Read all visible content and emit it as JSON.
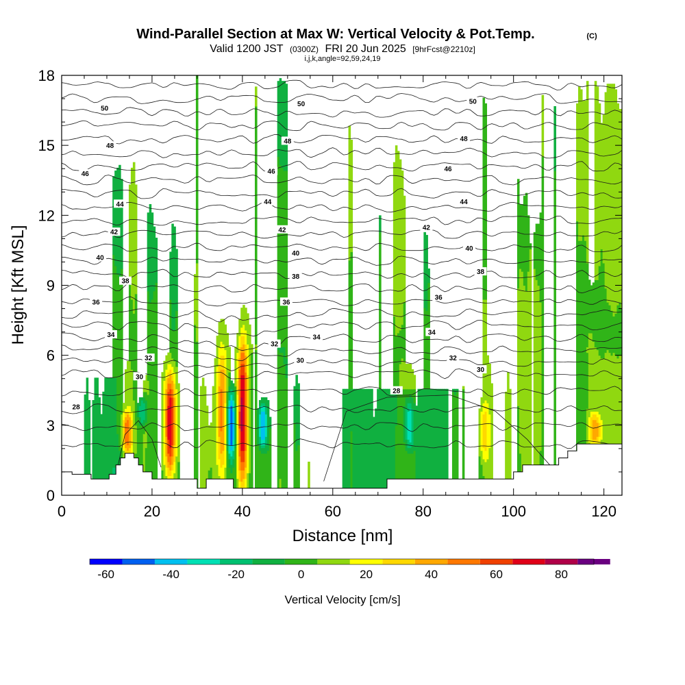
{
  "chart_data": {
    "type": "heatmap",
    "title": "Wind-Parallel Section at Max W: Vertical Velocity & Pot.Temp.",
    "title_mark": "(C)",
    "subtitle_main": "Valid 1200 JST",
    "subtitle_utc": "(0300Z)",
    "subtitle_date": "FRI 20 Jun 2025",
    "subtitle_fcst": "[9hrFcst@2210z]",
    "subtitle2": "i,j,k,angle=92,59,24,19",
    "xlabel": "Distance [nm]",
    "ylabel": "Height [Kft MSL]",
    "xlim": [
      0,
      124
    ],
    "ylim": [
      0,
      18
    ],
    "xticks": [
      0,
      20,
      40,
      60,
      80,
      100,
      120
    ],
    "yticks": [
      0,
      3,
      6,
      9,
      12,
      15,
      18
    ],
    "colorbar": {
      "label": "Vertical Velocity [cm/s]",
      "min": -65,
      "max": 90,
      "tick_values": [
        -60,
        -40,
        -20,
        0,
        20,
        40,
        60,
        80
      ],
      "bins": [
        {
          "lo": -65,
          "hi": -55,
          "color": "#0000ff"
        },
        {
          "lo": -55,
          "hi": -45,
          "color": "#0060f0"
        },
        {
          "lo": -45,
          "hi": -35,
          "color": "#00c0f0"
        },
        {
          "lo": -35,
          "hi": -25,
          "color": "#00e0b4"
        },
        {
          "lo": -25,
          "hi": -15,
          "color": "#00c070"
        },
        {
          "lo": -15,
          "hi": -5,
          "color": "#10b040"
        },
        {
          "lo": -5,
          "hi": 5,
          "color": "#30b418"
        },
        {
          "lo": 5,
          "hi": 15,
          "color": "#90d810"
        },
        {
          "lo": 15,
          "hi": 25,
          "color": "#ffff00"
        },
        {
          "lo": 25,
          "hi": 35,
          "color": "#ffd800"
        },
        {
          "lo": 35,
          "hi": 45,
          "color": "#ffa800"
        },
        {
          "lo": 45,
          "hi": 55,
          "color": "#ff7800"
        },
        {
          "lo": 55,
          "hi": 65,
          "color": "#f04000"
        },
        {
          "lo": 65,
          "hi": 75,
          "color": "#e00018"
        },
        {
          "lo": 75,
          "hi": 85,
          "color": "#b00048"
        },
        {
          "lo": 85,
          "hi": 95,
          "color": "#6a0080"
        }
      ]
    },
    "updraft_cores": [
      {
        "x": 24,
        "z_min": 0.9,
        "z_max": 5.3,
        "max_w": 70
      },
      {
        "x": 35.5,
        "z_min": 0.9,
        "z_max": 6.3,
        "max_w": 45
      },
      {
        "x": 40,
        "z_min": 0.5,
        "z_max": 6.7,
        "max_w": 75
      },
      {
        "x": 14.5,
        "z_min": 1.8,
        "z_max": 3.6,
        "max_w": 45
      },
      {
        "x": 118,
        "z_min": 2.2,
        "z_max": 3.5,
        "max_w": 35
      },
      {
        "x": 93.5,
        "z_min": 1.5,
        "z_max": 4.0,
        "max_w": 25
      }
    ],
    "downdraft_cores": [
      {
        "x": 37.5,
        "z_min": 1.5,
        "z_max": 4.5,
        "min_w": -55
      },
      {
        "x": 44.5,
        "z_min": 2.0,
        "z_max": 4.0,
        "min_w": -50
      },
      {
        "x": 18,
        "z_min": 3.0,
        "z_max": 4.2,
        "min_w": -30
      },
      {
        "x": 77,
        "z_min": 2.0,
        "z_max": 4.0,
        "min_w": -35
      }
    ],
    "theta_contour_labels": [
      {
        "value": "50",
        "x": 9.5,
        "z": 16.6
      },
      {
        "value": "50",
        "x": 53,
        "z": 16.8
      },
      {
        "value": "50",
        "x": 91,
        "z": 16.9
      },
      {
        "value": "48",
        "x": 10.7,
        "z": 15.0
      },
      {
        "value": "48",
        "x": 50,
        "z": 15.2
      },
      {
        "value": "48",
        "x": 89,
        "z": 15.3
      },
      {
        "value": "46",
        "x": 5.2,
        "z": 13.8
      },
      {
        "value": "46",
        "x": 46.4,
        "z": 13.9
      },
      {
        "value": "46",
        "x": 85.5,
        "z": 14.0
      },
      {
        "value": "44",
        "x": 12.9,
        "z": 12.5
      },
      {
        "value": "44",
        "x": 45.6,
        "z": 12.6
      },
      {
        "value": "44",
        "x": 89,
        "z": 12.6
      },
      {
        "value": "42",
        "x": 11.6,
        "z": 11.3
      },
      {
        "value": "42",
        "x": 48.8,
        "z": 11.4
      },
      {
        "value": "42",
        "x": 80.7,
        "z": 11.5
      },
      {
        "value": "40",
        "x": 8.5,
        "z": 10.2
      },
      {
        "value": "40",
        "x": 51.8,
        "z": 10.4
      },
      {
        "value": "40",
        "x": 90.2,
        "z": 10.6
      },
      {
        "value": "38",
        "x": 14.1,
        "z": 9.2
      },
      {
        "value": "38",
        "x": 51.8,
        "z": 9.4
      },
      {
        "value": "38",
        "x": 92.7,
        "z": 9.6
      },
      {
        "value": "36",
        "x": 7.6,
        "z": 8.3
      },
      {
        "value": "36",
        "x": 49.7,
        "z": 8.3
      },
      {
        "value": "36",
        "x": 83.4,
        "z": 8.5
      },
      {
        "value": "34",
        "x": 10.9,
        "z": 6.9
      },
      {
        "value": "34",
        "x": 56.4,
        "z": 6.8
      },
      {
        "value": "34",
        "x": 81.9,
        "z": 7.0
      },
      {
        "value": "32",
        "x": 19.2,
        "z": 5.9
      },
      {
        "value": "32",
        "x": 47.1,
        "z": 6.5
      },
      {
        "value": "32",
        "x": 86.6,
        "z": 5.9
      },
      {
        "value": "30",
        "x": 17.2,
        "z": 5.1
      },
      {
        "value": "30",
        "x": 52.8,
        "z": 5.8
      },
      {
        "value": "30",
        "x": 92.7,
        "z": 5.4
      },
      {
        "value": "28",
        "x": 3.2,
        "z": 3.8
      },
      {
        "value": "28",
        "x": 74.1,
        "z": 4.5
      }
    ],
    "terrain": [
      [
        0,
        1.0
      ],
      [
        2.3,
        1.0
      ],
      [
        2.3,
        0.9
      ],
      [
        6.5,
        0.9
      ],
      [
        6.5,
        0.7
      ],
      [
        10.5,
        0.7
      ],
      [
        10.5,
        0.9
      ],
      [
        12,
        0.9
      ],
      [
        12,
        1.3
      ],
      [
        13,
        1.3
      ],
      [
        13,
        1.6
      ],
      [
        14,
        1.6
      ],
      [
        14,
        1.8
      ],
      [
        16,
        1.8
      ],
      [
        16,
        1.6
      ],
      [
        17,
        1.6
      ],
      [
        17,
        1.3
      ],
      [
        18,
        1.3
      ],
      [
        18,
        1.0
      ],
      [
        20,
        1.0
      ],
      [
        20,
        0.7
      ],
      [
        30,
        0.7
      ],
      [
        30,
        0.3
      ],
      [
        32,
        0.3
      ],
      [
        32,
        0.7
      ],
      [
        38,
        0.7
      ],
      [
        38,
        0.3
      ],
      [
        54,
        0.3
      ],
      [
        54,
        0.3
      ],
      [
        72,
        0.3
      ],
      [
        72,
        0.7
      ],
      [
        100,
        0.7
      ],
      [
        100,
        1.0
      ],
      [
        102,
        1.0
      ],
      [
        102,
        1.3
      ],
      [
        110,
        1.3
      ],
      [
        110,
        1.6
      ],
      [
        112,
        1.6
      ],
      [
        112,
        1.9
      ],
      [
        114,
        1.9
      ],
      [
        114,
        2.2
      ],
      [
        124,
        2.2
      ]
    ]
  }
}
